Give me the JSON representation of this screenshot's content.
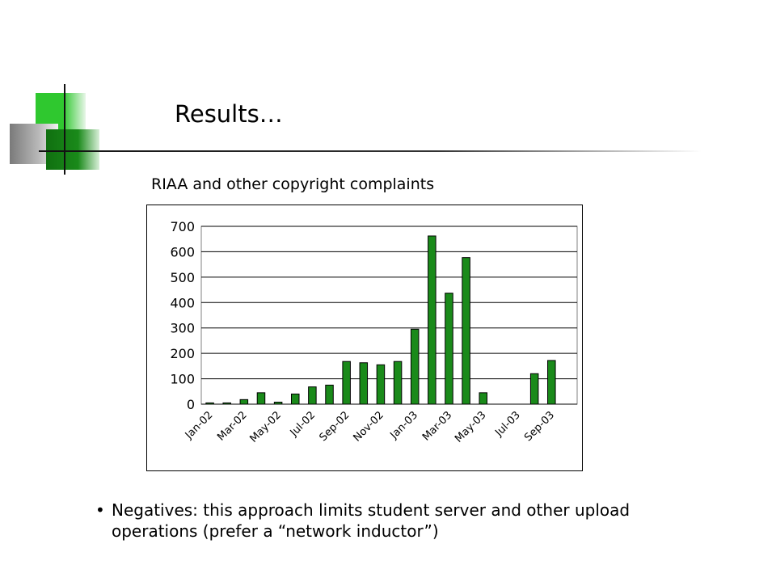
{
  "slide": {
    "title": "Results…",
    "bullet": "Negatives:  this approach limits student server and other upload operations (prefer a “network inductor”)"
  },
  "colors": {
    "bar": "#1a8a1a",
    "grid": "#000000"
  },
  "chart_data": {
    "type": "bar",
    "title": "RIAA and other copyright complaints",
    "xlabel": "",
    "ylabel": "",
    "ylim": [
      0,
      700
    ],
    "yticks": [
      0,
      100,
      200,
      300,
      400,
      500,
      600,
      700
    ],
    "grid": true,
    "categories": [
      "Jan-02",
      "Feb-02",
      "Mar-02",
      "Apr-02",
      "May-02",
      "Jun-02",
      "Jul-02",
      "Aug-02",
      "Sep-02",
      "Oct-02",
      "Nov-02",
      "Dec-02",
      "Jan-03",
      "Feb-03",
      "Mar-03",
      "Apr-03",
      "May-03",
      "Jun-03",
      "Jul-03",
      "Aug-03",
      "Sep-03",
      "Oct-03"
    ],
    "tick_labels": [
      "Jan-02",
      "Mar-02",
      "May-02",
      "Jul-02",
      "Sep-02",
      "Nov-02",
      "Jan-03",
      "Mar-03",
      "May-03",
      "Jul-03",
      "Sep-03"
    ],
    "values": [
      5,
      5,
      18,
      45,
      8,
      40,
      68,
      75,
      168,
      163,
      155,
      168,
      295,
      662,
      437,
      577,
      45,
      0,
      0,
      120,
      172,
      0
    ]
  }
}
